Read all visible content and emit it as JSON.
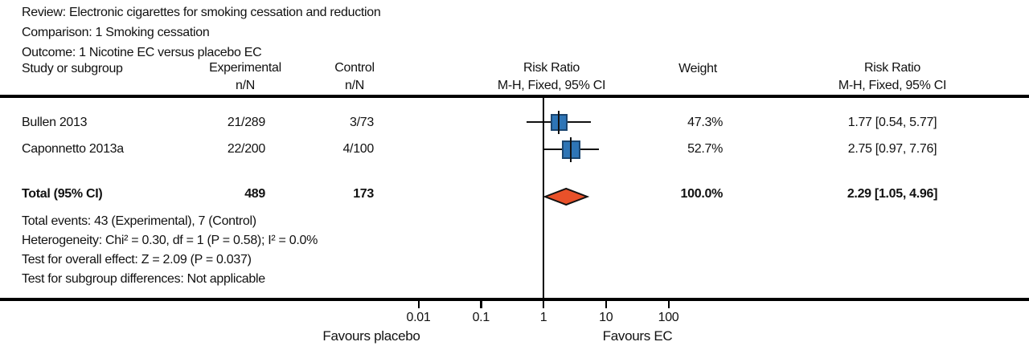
{
  "header": {
    "review": "Review: Electronic cigarettes for smoking cessation and reduction",
    "comparison": "Comparison: 1 Smoking cessation",
    "outcome": "Outcome: 1 Nicotine EC versus placebo EC"
  },
  "columns": {
    "study": "Study or subgroup",
    "experimental_line1": "Experimental",
    "experimental_line2": "n/N",
    "control_line1": "Control",
    "control_line2": "n/N",
    "rr_plot_line1": "Risk Ratio",
    "rr_plot_line2": "M-H, Fixed, 95% CI",
    "weight": "Weight",
    "rr_text_line1": "Risk Ratio",
    "rr_text_line2": "M-H, Fixed, 95% CI"
  },
  "chart_data": {
    "type": "scatter",
    "subtype": "forest_plot",
    "effect_measure": "Risk Ratio, M-H, Fixed, 95% CI",
    "x_scale": "log",
    "x_ticks": [
      "0.01",
      "0.1",
      "1",
      "10",
      "100"
    ],
    "x_axis_labels": {
      "left": "Favours placebo",
      "right": "Favours EC"
    },
    "studies": [
      {
        "label": "Bullen 2013",
        "experimental": "21/289",
        "control": "3/73",
        "rr": 1.77,
        "ci_low": 0.54,
        "ci_high": 5.77,
        "weight_pct": 47.3,
        "weight": "47.3%",
        "rr_text": "1.77 [0.54, 5.77]"
      },
      {
        "label": "Caponnetto 2013a",
        "experimental": "22/200",
        "control": "4/100",
        "rr": 2.75,
        "ci_low": 0.97,
        "ci_high": 7.76,
        "weight_pct": 52.7,
        "weight": "52.7%",
        "rr_text": "2.75 [0.97, 7.76]"
      }
    ],
    "total": {
      "label": "Total (95% CI)",
      "experimental": "489",
      "control": "173",
      "rr": 2.29,
      "ci_low": 1.05,
      "ci_high": 4.96,
      "weight": "100.0%",
      "rr_text": "2.29 [1.05, 4.96]"
    },
    "colors": {
      "square_fill": "#2e75b6",
      "square_border": "#1b4670",
      "diamond_fill": "#e8512a",
      "diamond_border": "#111111",
      "line": "#111111"
    }
  },
  "footnotes": {
    "total_events": "Total events: 43 (Experimental), 7 (Control)",
    "heterogeneity": "Heterogeneity: Chi² = 0.30, df = 1 (P = 0.58); I² = 0.0%",
    "overall_effect": "Test for overall effect: Z = 2.09 (P = 0.037)",
    "subgroup_differences": "Test for subgroup differences: Not applicable"
  }
}
